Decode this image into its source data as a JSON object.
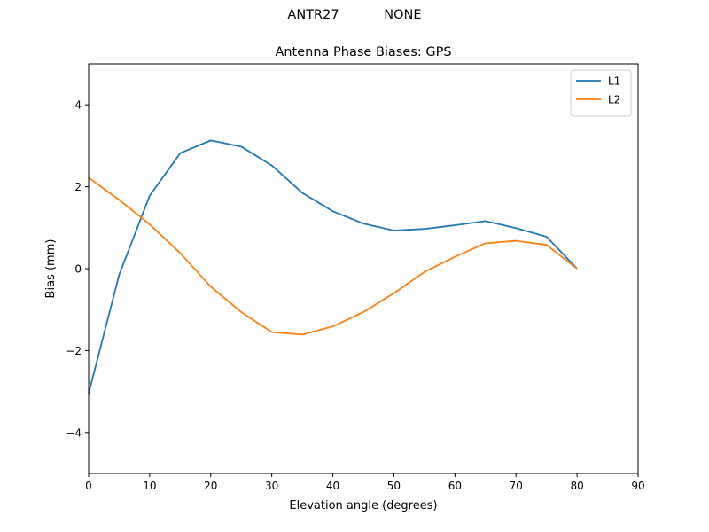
{
  "figure": {
    "suptitle_left": "ANTR27",
    "suptitle_right": "NONE"
  },
  "chart_data": {
    "type": "line",
    "title": "Antenna Phase Biases: GPS",
    "xlabel": "Elevation angle (degrees)",
    "ylabel": "Bias (mm)",
    "xlim": [
      0,
      90
    ],
    "ylim": [
      -5,
      5
    ],
    "xticks": [
      0,
      10,
      20,
      30,
      40,
      50,
      60,
      70,
      80,
      90
    ],
    "yticks": [
      -4,
      -2,
      0,
      2,
      4
    ],
    "grid": false,
    "legend_position": "top-right",
    "x": [
      0,
      5,
      10,
      15,
      20,
      25,
      30,
      35,
      40,
      45,
      50,
      55,
      60,
      65,
      70,
      75,
      80
    ],
    "series": [
      {
        "name": "L1",
        "color": "#1f77b4",
        "values": [
          -3.05,
          -0.15,
          1.78,
          2.82,
          3.13,
          2.98,
          2.52,
          1.85,
          1.4,
          1.1,
          0.93,
          0.97,
          1.06,
          1.16,
          0.99,
          0.78,
          0.0
        ]
      },
      {
        "name": "L2",
        "color": "#ff7f0e",
        "values": [
          2.22,
          1.68,
          1.08,
          0.38,
          -0.44,
          -1.06,
          -1.55,
          -1.61,
          -1.41,
          -1.06,
          -0.6,
          -0.08,
          0.29,
          0.62,
          0.68,
          0.58,
          0.0
        ]
      }
    ]
  }
}
